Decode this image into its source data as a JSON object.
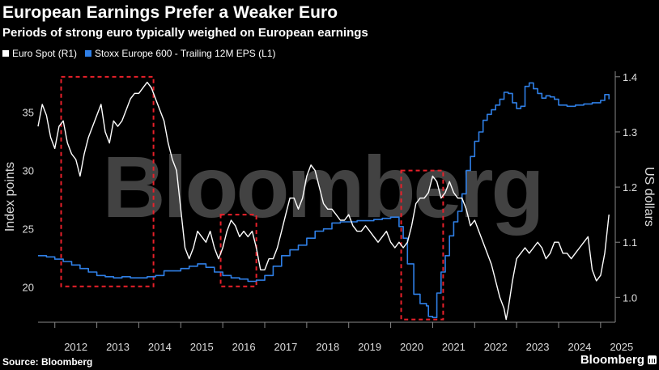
{
  "header": {
    "title": "European Earnings Prefer a Weaker Euro",
    "subtitle": "Periods of strong euro typically weighed on European earnings"
  },
  "legend": {
    "items": [
      {
        "label": "Euro Spot (R1)",
        "color": "#ffffff"
      },
      {
        "label": "Stoxx Europe 600 - Trailing 12M EPS (L1)",
        "color": "#2f7fe6"
      }
    ]
  },
  "footer": {
    "source": "Source: Bloomberg",
    "brand": "Bloomberg"
  },
  "watermark": "Bloomberg",
  "chart_data": {
    "type": "line",
    "xlabel": "",
    "x_ticks": [
      "2012",
      "2013",
      "2014",
      "2015",
      "2016",
      "2017",
      "2018",
      "2019",
      "2020",
      "2021",
      "2022",
      "2023",
      "2024",
      "2025"
    ],
    "x_range": [
      2011.6,
      2025.35
    ],
    "left_axis": {
      "label": "Index points",
      "ticks": [
        20,
        25,
        30,
        35
      ],
      "range": [
        17,
        38.5
      ]
    },
    "right_axis": {
      "label": "US dollars",
      "ticks": [
        "1.0",
        "1.1",
        "1.2",
        "1.3",
        "1.4"
      ],
      "range": [
        0.955,
        1.41
      ]
    },
    "grid": false,
    "legend_position": "top-left",
    "series": [
      {
        "name": "Stoxx Europe 600 - Trailing 12M EPS (L1)",
        "axis": "left",
        "color": "#2f7fe6",
        "x": [
          2011.6,
          2011.8,
          2012.0,
          2012.2,
          2012.4,
          2012.6,
          2012.8,
          2013.0,
          2013.2,
          2013.4,
          2013.6,
          2013.8,
          2014.0,
          2014.2,
          2014.4,
          2014.6,
          2014.8,
          2015.0,
          2015.2,
          2015.4,
          2015.6,
          2015.8,
          2016.0,
          2016.2,
          2016.4,
          2016.6,
          2016.8,
          2017.0,
          2017.2,
          2017.4,
          2017.6,
          2017.8,
          2018.0,
          2018.2,
          2018.4,
          2018.6,
          2018.8,
          2019.0,
          2019.2,
          2019.4,
          2019.6,
          2019.8,
          2020.0,
          2020.1,
          2020.2,
          2020.3,
          2020.4,
          2020.55,
          2020.7,
          2020.85,
          2020.9,
          2021.0,
          2021.1,
          2021.2,
          2021.3,
          2021.4,
          2021.5,
          2021.6,
          2021.7,
          2021.8,
          2021.9,
          2022.0,
          2022.1,
          2022.2,
          2022.3,
          2022.4,
          2022.5,
          2022.6,
          2022.7,
          2022.8,
          2022.9,
          2023.0,
          2023.1,
          2023.2,
          2023.3,
          2023.4,
          2023.5,
          2023.6,
          2023.7,
          2023.8,
          2023.9,
          2024.0,
          2024.2,
          2024.4,
          2024.6,
          2024.8,
          2025.0,
          2025.1,
          2025.2
        ],
        "y": [
          22.7,
          22.6,
          22.4,
          22.2,
          21.9,
          21.6,
          21.3,
          21.0,
          20.9,
          20.8,
          20.9,
          20.8,
          20.8,
          20.9,
          21.0,
          21.4,
          21.4,
          21.6,
          21.8,
          22.0,
          21.7,
          21.3,
          21.0,
          20.8,
          20.7,
          20.5,
          20.6,
          21.0,
          21.8,
          22.7,
          23.2,
          23.6,
          24.2,
          24.8,
          25.0,
          25.5,
          25.6,
          25.6,
          25.7,
          25.7,
          25.8,
          25.9,
          26.0,
          26.0,
          25.2,
          24.2,
          22.0,
          19.4,
          18.6,
          18.4,
          17.5,
          17.4,
          19.5,
          21.3,
          22.7,
          24.4,
          25.6,
          26.5,
          28.0,
          30.0,
          31.2,
          32.5,
          33.3,
          34.3,
          34.8,
          35.2,
          35.6,
          36.1,
          36.7,
          36.6,
          35.8,
          35.3,
          35.5,
          37.2,
          37.5,
          37.0,
          36.6,
          36.2,
          36.4,
          36.3,
          36.1,
          35.6,
          35.5,
          35.6,
          35.7,
          35.8,
          36.0,
          36.5,
          36.1
        ]
      },
      {
        "name": "Euro Spot (R1)",
        "axis": "right",
        "color": "#ffffff",
        "x": [
          2011.6,
          2011.7,
          2011.8,
          2011.9,
          2012.0,
          2012.1,
          2012.2,
          2012.3,
          2012.4,
          2012.5,
          2012.6,
          2012.7,
          2012.8,
          2012.9,
          2013.0,
          2013.1,
          2013.2,
          2013.3,
          2013.4,
          2013.5,
          2013.6,
          2013.7,
          2013.8,
          2013.9,
          2014.0,
          2014.1,
          2014.2,
          2014.3,
          2014.4,
          2014.5,
          2014.6,
          2014.7,
          2014.8,
          2014.9,
          2015.0,
          2015.1,
          2015.2,
          2015.3,
          2015.4,
          2015.5,
          2015.6,
          2015.7,
          2015.8,
          2015.9,
          2016.0,
          2016.1,
          2016.2,
          2016.3,
          2016.4,
          2016.5,
          2016.6,
          2016.7,
          2016.8,
          2016.9,
          2017.0,
          2017.1,
          2017.2,
          2017.3,
          2017.4,
          2017.5,
          2017.6,
          2017.7,
          2017.8,
          2017.9,
          2018.0,
          2018.1,
          2018.2,
          2018.3,
          2018.4,
          2018.5,
          2018.6,
          2018.7,
          2018.8,
          2018.9,
          2019.0,
          2019.1,
          2019.2,
          2019.3,
          2019.4,
          2019.5,
          2019.6,
          2019.7,
          2019.8,
          2019.9,
          2020.0,
          2020.1,
          2020.2,
          2020.3,
          2020.4,
          2020.5,
          2020.6,
          2020.7,
          2020.8,
          2020.9,
          2021.0,
          2021.1,
          2021.2,
          2021.3,
          2021.4,
          2021.5,
          2021.6,
          2021.7,
          2021.8,
          2021.9,
          2022.0,
          2022.1,
          2022.2,
          2022.3,
          2022.4,
          2022.5,
          2022.6,
          2022.7,
          2022.75,
          2022.8,
          2022.9,
          2023.0,
          2023.1,
          2023.2,
          2023.3,
          2023.4,
          2023.5,
          2023.6,
          2023.7,
          2023.8,
          2023.9,
          2024.0,
          2024.1,
          2024.2,
          2024.3,
          2024.4,
          2024.5,
          2024.6,
          2024.7,
          2024.8,
          2024.9,
          2025.0,
          2025.1,
          2025.2
        ],
        "y": [
          1.31,
          1.35,
          1.33,
          1.29,
          1.27,
          1.31,
          1.32,
          1.28,
          1.26,
          1.25,
          1.22,
          1.26,
          1.29,
          1.31,
          1.33,
          1.35,
          1.3,
          1.28,
          1.32,
          1.31,
          1.32,
          1.34,
          1.36,
          1.37,
          1.37,
          1.38,
          1.39,
          1.38,
          1.36,
          1.34,
          1.32,
          1.28,
          1.25,
          1.23,
          1.16,
          1.09,
          1.07,
          1.09,
          1.12,
          1.11,
          1.1,
          1.12,
          1.09,
          1.07,
          1.09,
          1.12,
          1.14,
          1.13,
          1.11,
          1.12,
          1.11,
          1.12,
          1.09,
          1.05,
          1.05,
          1.07,
          1.07,
          1.09,
          1.12,
          1.15,
          1.18,
          1.18,
          1.16,
          1.18,
          1.22,
          1.24,
          1.23,
          1.2,
          1.17,
          1.16,
          1.16,
          1.15,
          1.14,
          1.14,
          1.15,
          1.13,
          1.12,
          1.12,
          1.13,
          1.12,
          1.11,
          1.1,
          1.11,
          1.12,
          1.1,
          1.09,
          1.1,
          1.09,
          1.1,
          1.13,
          1.17,
          1.18,
          1.18,
          1.19,
          1.22,
          1.21,
          1.18,
          1.19,
          1.21,
          1.19,
          1.18,
          1.18,
          1.16,
          1.13,
          1.14,
          1.12,
          1.1,
          1.08,
          1.06,
          1.03,
          1.0,
          0.98,
          0.96,
          0.98,
          1.03,
          1.07,
          1.08,
          1.09,
          1.08,
          1.09,
          1.1,
          1.09,
          1.07,
          1.08,
          1.1,
          1.1,
          1.08,
          1.08,
          1.07,
          1.08,
          1.09,
          1.1,
          1.11,
          1.05,
          1.03,
          1.04,
          1.08,
          1.15
        ]
      }
    ],
    "highlight_regions": [
      {
        "x": [
          2012.15,
          2014.35
        ],
        "y_right": [
          1.02,
          1.4
        ]
      },
      {
        "x": [
          2015.95,
          2016.8
        ],
        "y_right": [
          1.02,
          1.15
        ]
      },
      {
        "x": [
          2020.25,
          2021.25
        ],
        "y_right": [
          0.96,
          1.23
        ]
      }
    ]
  }
}
